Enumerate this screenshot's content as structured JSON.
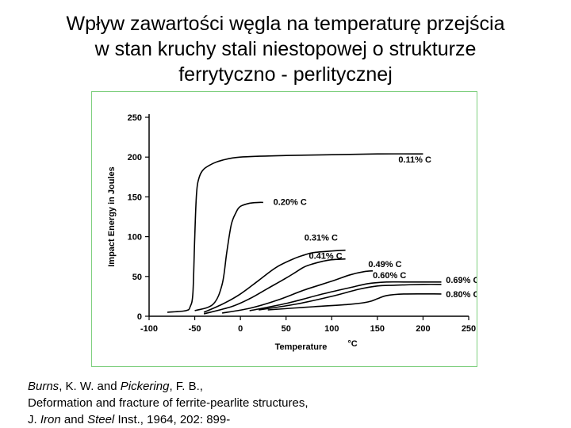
{
  "title": {
    "line1": "Wpływ zawartości węgla na temperaturę przejścia",
    "line2": "w stan kruchy stali niestopowej o strukturze",
    "line3": "ferrytyczno - perlitycznej"
  },
  "chart_data": {
    "type": "line",
    "title": "",
    "xlabel": "Temperature",
    "xlabel_unit": "°C",
    "ylabel": "Impact Energy in Joules",
    "xlim": [
      -100,
      250
    ],
    "ylim": [
      0,
      250
    ],
    "x_ticks": [
      "-100",
      "-50",
      "0",
      "50",
      "100",
      "150",
      "200",
      "250"
    ],
    "y_ticks": [
      "0",
      "50",
      "100",
      "150",
      "200",
      "250"
    ],
    "grid": false,
    "series": [
      {
        "name": "0.11% C",
        "x": [
          -80,
          -60,
          -55,
          -52,
          -50,
          -48,
          -45,
          -40,
          -30,
          -20,
          0,
          50,
          100,
          150,
          200
        ],
        "y": [
          5,
          7,
          12,
          30,
          100,
          155,
          175,
          185,
          192,
          196,
          200,
          202,
          203,
          204,
          204
        ]
      },
      {
        "name": "0.20% C",
        "x": [
          -50,
          -30,
          -20,
          -15,
          -10,
          -5,
          0,
          10,
          20,
          25
        ],
        "y": [
          7,
          15,
          40,
          80,
          115,
          130,
          138,
          142,
          143,
          143
        ]
      },
      {
        "name": "0.31% C",
        "x": [
          -40,
          -20,
          0,
          20,
          40,
          60,
          70,
          80,
          100,
          115
        ],
        "y": [
          5,
          15,
          28,
          45,
          62,
          73,
          77,
          80,
          82,
          83
        ]
      },
      {
        "name": "0.41% C",
        "x": [
          -40,
          -10,
          10,
          30,
          50,
          60,
          70,
          80,
          90,
          100,
          115
        ],
        "y": [
          3,
          12,
          22,
          35,
          48,
          55,
          62,
          66,
          69,
          71,
          72
        ]
      },
      {
        "name": "0.49% C",
        "x": [
          -20,
          10,
          40,
          70,
          100,
          120,
          135,
          145
        ],
        "y": [
          4,
          10,
          20,
          33,
          44,
          52,
          56,
          57
        ]
      },
      {
        "name": "0.60% C",
        "x": [
          10,
          50,
          90,
          120,
          140,
          160,
          180,
          200,
          220
        ],
        "y": [
          7,
          16,
          28,
          36,
          41,
          43,
          43,
          43,
          43
        ]
      },
      {
        "name": "0.69% C",
        "x": [
          20,
          60,
          100,
          130,
          150,
          170,
          200,
          220
        ],
        "y": [
          8,
          15,
          25,
          34,
          38,
          39,
          40,
          40
        ]
      },
      {
        "name": "0.80% C",
        "x": [
          30,
          80,
          120,
          140,
          150,
          160,
          180,
          220
        ],
        "y": [
          8,
          12,
          15,
          18,
          22,
          26,
          28,
          28
        ]
      }
    ],
    "curve_labels": [
      {
        "text": "0.11% C",
        "x": 173,
        "y": 193
      },
      {
        "text": "0.20% C",
        "x": 36,
        "y": 140
      },
      {
        "text": "0.31% C",
        "x": 70,
        "y": 95
      },
      {
        "text": "0.41% C",
        "x": 75,
        "y": 72
      },
      {
        "text": "0.49% C",
        "x": 140,
        "y": 62
      },
      {
        "text": "0.60% C",
        "x": 145,
        "y": 48
      },
      {
        "text": "0.69% C",
        "x": 225,
        "y": 42
      },
      {
        "text": "0.80% C",
        "x": 225,
        "y": 24
      }
    ]
  },
  "citation": {
    "author1": "Burns",
    "author1_rest": ", K. W. and ",
    "author2": "Pickering",
    "author2_rest": ", F. B.,",
    "line2": "Deformation and fracture of ferrite-pearlite structures,",
    "j_prefix": "J. ",
    "journal1": "Iron",
    "j_and": " and ",
    "journal2": "Steel",
    "j_rest": " Inst., 1964, 202: 899-"
  }
}
